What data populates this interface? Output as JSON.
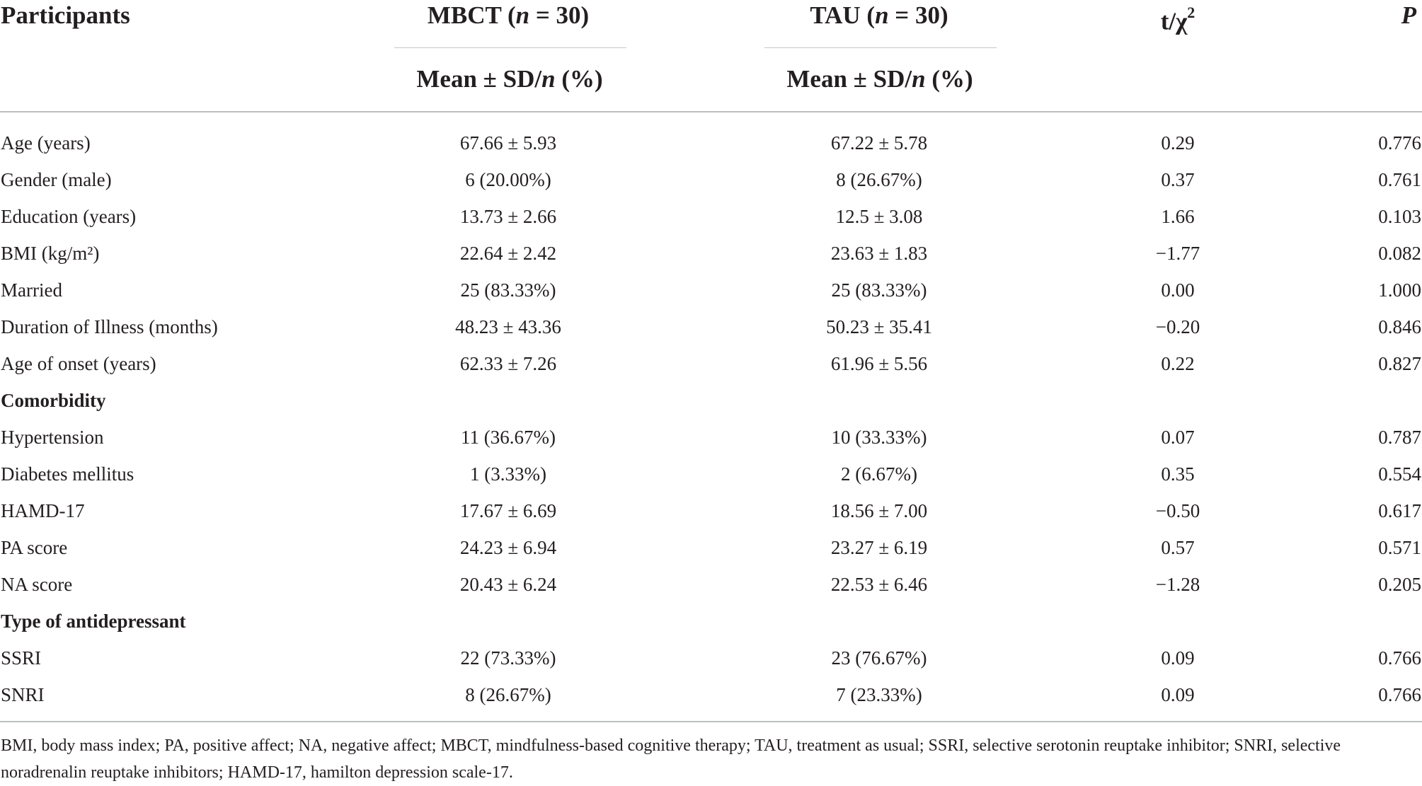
{
  "table": {
    "headers": {
      "participants": "Participants",
      "mbct_name": "MBCT",
      "mbct_n": "(n = 30)",
      "tau_name": "TAU",
      "tau_n": "(n = 30)",
      "stat": "t/χ",
      "stat_sup": "2",
      "p": "P"
    },
    "subheaders": {
      "mbct": "Mean ± SD/n (%)",
      "tau": "Mean ± SD/n (%)"
    },
    "rows": [
      {
        "label": "Age (years)",
        "mbct": "67.66 ± 5.93",
        "tau": "67.22 ± 5.78",
        "stat": "0.29",
        "p": "0.776"
      },
      {
        "label": "Gender (male)",
        "mbct": "6 (20.00%)",
        "tau": "8 (26.67%)",
        "stat": "0.37",
        "p": "0.761"
      },
      {
        "label": "Education (years)",
        "mbct": "13.73 ± 2.66",
        "tau": "12.5 ± 3.08",
        "stat": "1.66",
        "p": "0.103"
      },
      {
        "label": "BMI (kg/m²)",
        "mbct": "22.64 ± 2.42",
        "tau": "23.63 ± 1.83",
        "stat": "−1.77",
        "p": "0.082"
      },
      {
        "label": "Married",
        "mbct": "25 (83.33%)",
        "tau": "25 (83.33%)",
        "stat": "0.00",
        "p": "1.000"
      },
      {
        "label": "Duration of Illness (months)",
        "mbct": "48.23 ± 43.36",
        "tau": "50.23 ± 35.41",
        "stat": "−0.20",
        "p": "0.846"
      },
      {
        "label": "Age of onset (years)",
        "mbct": "62.33 ± 7.26",
        "tau": "61.96 ± 5.56",
        "stat": "0.22",
        "p": "0.827"
      },
      {
        "label": "Comorbidity",
        "mbct": "",
        "tau": "",
        "stat": "",
        "p": "",
        "section": true
      },
      {
        "label": "Hypertension",
        "mbct": "11 (36.67%)",
        "tau": "10 (33.33%)",
        "stat": "0.07",
        "p": "0.787"
      },
      {
        "label": "Diabetes mellitus",
        "mbct": "1 (3.33%)",
        "tau": "2 (6.67%)",
        "stat": "0.35",
        "p": "0.554"
      },
      {
        "label": "HAMD-17",
        "mbct": "17.67 ± 6.69",
        "tau": "18.56 ± 7.00",
        "stat": "−0.50",
        "p": "0.617"
      },
      {
        "label": "PA score",
        "mbct": "24.23 ± 6.94",
        "tau": "23.27 ± 6.19",
        "stat": "0.57",
        "p": "0.571"
      },
      {
        "label": "NA score",
        "mbct": "20.43 ± 6.24",
        "tau": "22.53 ± 6.46",
        "stat": "−1.28",
        "p": "0.205"
      },
      {
        "label": "Type of antidepressant",
        "mbct": "",
        "tau": "",
        "stat": "",
        "p": "",
        "section": true
      },
      {
        "label": "SSRI",
        "mbct": "22 (73.33%)",
        "tau": "23 (76.67%)",
        "stat": "0.09",
        "p": "0.766"
      },
      {
        "label": "SNRI",
        "mbct": "8 (26.67%)",
        "tau": "7 (23.33%)",
        "stat": "0.09",
        "p": "0.766"
      }
    ],
    "footnote": "BMI, body mass index; PA, positive affect; NA, negative affect; MBCT, mindfulness-based cognitive therapy; TAU, treatment as usual; SSRI, selective serotonin reuptake inhibitor; SNRI, selective noradrenalin reuptake inhibitors; HAMD-17, hamilton depression scale-17."
  }
}
